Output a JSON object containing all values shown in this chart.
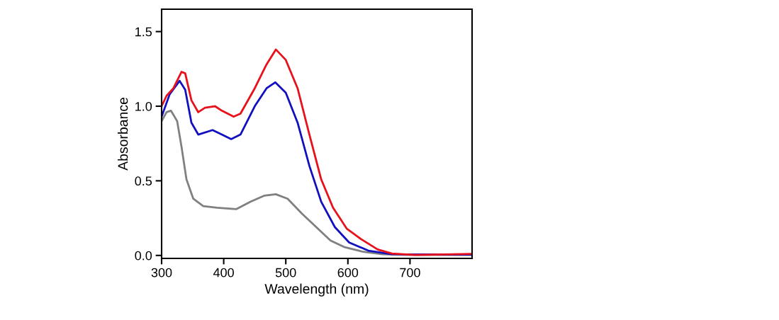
{
  "chart_data": {
    "type": "line",
    "xlabel": "Wavelength (nm)",
    "ylabel": "Absorbance",
    "xlim": [
      300,
      800
    ],
    "ylim": [
      -0.02,
      1.65
    ],
    "xticks": [
      300,
      400,
      500,
      600,
      700
    ],
    "yticks": [
      {
        "value": 0,
        "label": "0.0"
      },
      {
        "value": 0.5,
        "label": "0.5"
      },
      {
        "value": 1.0,
        "label": "1.0"
      },
      {
        "value": 1.5,
        "label": "1.5"
      }
    ],
    "marker": "none",
    "line_style": "solid",
    "series": [
      {
        "color": "#808080",
        "x": [
          300,
          308,
          315,
          325,
          332,
          340,
          351,
          367,
          389,
          420,
          443,
          465,
          484,
          503,
          526,
          549,
          572,
          595,
          625,
          656,
          700,
          800
        ],
        "values": [
          0.9,
          0.96,
          0.97,
          0.9,
          0.73,
          0.51,
          0.38,
          0.33,
          0.32,
          0.31,
          0.36,
          0.4,
          0.41,
          0.38,
          0.28,
          0.19,
          0.1,
          0.055,
          0.024,
          0.008,
          0.003,
          0.003
        ]
      },
      {
        "color": "#1010c0",
        "x": [
          300,
          313,
          329,
          338,
          348,
          359,
          382,
          397,
          412,
          427,
          450,
          469,
          483,
          500,
          519,
          538,
          557,
          579,
          602,
          633,
          671,
          800
        ],
        "values": [
          0.93,
          1.08,
          1.17,
          1.11,
          0.89,
          0.81,
          0.84,
          0.81,
          0.78,
          0.81,
          1.0,
          1.12,
          1.16,
          1.09,
          0.89,
          0.6,
          0.36,
          0.19,
          0.087,
          0.032,
          0.008,
          0.005
        ]
      },
      {
        "color": "#e8101a",
        "x": [
          300,
          308,
          319,
          332,
          338,
          348,
          359,
          370,
          386,
          397,
          416,
          427,
          450,
          469,
          484,
          500,
          519,
          538,
          557,
          576,
          598,
          621,
          648,
          671,
          709,
          800
        ],
        "values": [
          1.0,
          1.07,
          1.12,
          1.23,
          1.22,
          1.04,
          0.96,
          0.99,
          1.0,
          0.97,
          0.93,
          0.95,
          1.12,
          1.28,
          1.38,
          1.31,
          1.12,
          0.81,
          0.51,
          0.32,
          0.18,
          0.11,
          0.04,
          0.013,
          0.003,
          0.01
        ]
      }
    ]
  }
}
